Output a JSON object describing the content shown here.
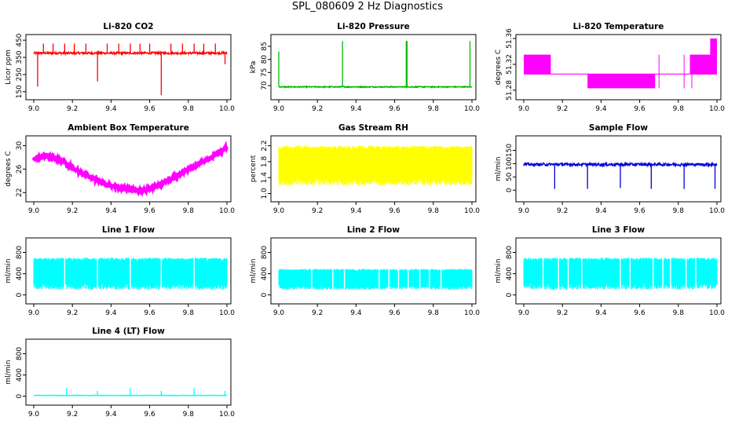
{
  "figure_title": "SPL_080609  2 Hz Diagnostics",
  "chart_data": [
    {
      "type": "line",
      "title": "Li-820 CO2",
      "ylabel": "Licor ppm",
      "color": "#ff0000",
      "xlim": [
        9.0,
        10.0
      ],
      "ylim": [
        140,
        460
      ],
      "yticks": [
        "150",
        "250",
        "350",
        "450"
      ],
      "ytick_values": [
        150,
        250,
        350,
        450
      ],
      "xticks": [
        "9.0",
        "9.2",
        "9.4",
        "9.6",
        "9.8",
        "10.0"
      ],
      "baseline": 375,
      "noise": 6,
      "spikes": [
        [
          9.02,
          180
        ],
        [
          9.05,
          430
        ],
        [
          9.1,
          430
        ],
        [
          9.16,
          430
        ],
        [
          9.21,
          430
        ],
        [
          9.27,
          430
        ],
        [
          9.33,
          210
        ],
        [
          9.38,
          430
        ],
        [
          9.44,
          430
        ],
        [
          9.5,
          430
        ],
        [
          9.55,
          430
        ],
        [
          9.6,
          430
        ],
        [
          9.66,
          130
        ],
        [
          9.71,
          430
        ],
        [
          9.77,
          430
        ],
        [
          9.83,
          430
        ],
        [
          9.88,
          430
        ],
        [
          9.94,
          430
        ],
        [
          9.99,
          310
        ]
      ]
    },
    {
      "type": "line",
      "title": "Li-820 Pressure",
      "ylabel": "kPa",
      "color": "#00bb00",
      "xlim": [
        9.0,
        10.0
      ],
      "ylim": [
        67,
        88
      ],
      "yticks": [
        "70",
        "75",
        "80",
        "85"
      ],
      "ytick_values": [
        70,
        75,
        80,
        85
      ],
      "xticks": [
        "9.0",
        "9.2",
        "9.4",
        "9.6",
        "9.8",
        "10.0"
      ],
      "baseline": 69.5,
      "noise": 0.2,
      "spikes": [
        [
          9.0,
          83
        ],
        [
          9.33,
          87
        ],
        [
          9.66,
          87
        ],
        [
          9.664,
          87
        ],
        [
          9.99,
          87
        ]
      ]
    },
    {
      "type": "step",
      "title": "Li-820 Temperature",
      "ylabel": "degrees C",
      "color": "#ff00ff",
      "xlim": [
        9.0,
        10.0
      ],
      "ylim": [
        51.275,
        51.36
      ],
      "yticks": [
        "51.28",
        "51.32",
        "51.36"
      ],
      "ytick_values": [
        51.28,
        51.32,
        51.36
      ],
      "xticks": [
        "9.0",
        "9.2",
        "9.4",
        "9.6",
        "9.8",
        "10.0"
      ],
      "bands": [
        [
          9.0,
          9.14,
          51.305,
          51.335
        ],
        [
          9.33,
          9.68,
          51.283,
          51.305
        ],
        [
          9.86,
          10.0,
          51.305,
          51.335
        ],
        [
          9.965,
          10.0,
          51.335,
          51.36
        ]
      ],
      "baseline": 51.305
    },
    {
      "type": "line",
      "title": "Ambient Box Temperature",
      "ylabel": "degrees C",
      "color": "#ff00ff",
      "xlim": [
        9.0,
        10.0
      ],
      "ylim": [
        21.5,
        31
      ],
      "yticks": [
        "22",
        "26",
        "30"
      ],
      "ytick_values": [
        22,
        26,
        30
      ],
      "xticks": [
        "9.0",
        "9.2",
        "9.4",
        "9.6",
        "9.8",
        "10.0"
      ],
      "curve": [
        [
          9.0,
          27.7
        ],
        [
          9.07,
          28.2
        ],
        [
          9.15,
          27.3
        ],
        [
          9.25,
          25.3
        ],
        [
          9.35,
          23.7
        ],
        [
          9.45,
          22.8
        ],
        [
          9.55,
          22.3
        ],
        [
          9.65,
          23.2
        ],
        [
          9.75,
          25.0
        ],
        [
          9.85,
          26.9
        ],
        [
          9.93,
          28.2
        ],
        [
          10.0,
          29.8
        ]
      ],
      "noise": 0.35
    },
    {
      "type": "noise",
      "title": "Gas Stream RH",
      "ylabel": "percent",
      "color": "#ffff00",
      "xlim": [
        9.0,
        10.0
      ],
      "ylim": [
        0.95,
        2.35
      ],
      "yticks": [
        "1.0",
        "1.4",
        "1.8",
        "2.2"
      ],
      "ytick_values": [
        1.0,
        1.4,
        1.8,
        2.2
      ],
      "xticks": [
        "9.0",
        "9.2",
        "9.4",
        "9.6",
        "9.8",
        "10.0"
      ],
      "band": [
        1.2,
        2.2
      ],
      "min": 1.0,
      "max": 2.3
    },
    {
      "type": "line",
      "title": "Sample Flow",
      "ylabel": "ml/min",
      "color": "#0000dd",
      "xlim": [
        9.0,
        10.0
      ],
      "ylim": [
        -20,
        190
      ],
      "yticks": [
        "0",
        "50",
        "100",
        "150"
      ],
      "ytick_values": [
        0,
        50,
        100,
        150
      ],
      "xticks": [
        "9.0",
        "9.2",
        "9.4",
        "9.6",
        "9.8",
        "10.0"
      ],
      "baseline": 97,
      "noise": 5,
      "spikes": [
        [
          9.16,
          5
        ],
        [
          9.33,
          5
        ],
        [
          9.5,
          8
        ],
        [
          9.66,
          5
        ],
        [
          9.83,
          5
        ],
        [
          9.99,
          5
        ]
      ]
    },
    {
      "type": "noise",
      "title": "Line 1 Flow",
      "ylabel": "ml/min",
      "color": "#00ffff",
      "xlim": [
        9.0,
        10.0
      ],
      "ylim": [
        -50,
        1000
      ],
      "yticks": [
        "0",
        "400",
        "800"
      ],
      "ytick_values": [
        0,
        400,
        800
      ],
      "xticks": [
        "9.0",
        "9.2",
        "9.4",
        "9.6",
        "9.8",
        "10.0"
      ],
      "band": [
        100,
        700
      ],
      "min": 100,
      "max": 710,
      "gaps": [
        9.16,
        9.33,
        9.5,
        9.66,
        9.83
      ]
    },
    {
      "type": "noise",
      "title": "Line 2 Flow",
      "ylabel": "ml/min",
      "color": "#00ffff",
      "xlim": [
        9.0,
        10.0
      ],
      "ylim": [
        -50,
        1000
      ],
      "yticks": [
        "0",
        "400",
        "800"
      ],
      "ytick_values": [
        0,
        400,
        800
      ],
      "xticks": [
        "9.0",
        "9.2",
        "9.4",
        "9.6",
        "9.8",
        "10.0"
      ],
      "band": [
        100,
        490
      ],
      "min": 90,
      "max": 500,
      "gaps": [
        9.17,
        9.28,
        9.34,
        9.52,
        9.57,
        9.62,
        9.67,
        9.73,
        9.78,
        9.84
      ]
    },
    {
      "type": "noise",
      "title": "Line 3 Flow",
      "ylabel": "ml/min",
      "color": "#00ffff",
      "xlim": [
        9.0,
        10.0
      ],
      "ylim": [
        -50,
        1000
      ],
      "yticks": [
        "0",
        "400",
        "800"
      ],
      "ytick_values": [
        0,
        400,
        800
      ],
      "xticks": [
        "9.0",
        "9.2",
        "9.4",
        "9.6",
        "9.8",
        "10.0"
      ],
      "band": [
        100,
        700
      ],
      "min": 90,
      "max": 720,
      "gaps": [
        9.1,
        9.18,
        9.23,
        9.3,
        9.5,
        9.55,
        9.67,
        9.72,
        9.76,
        9.84,
        9.89
      ]
    },
    {
      "type": "line",
      "title": "Line 4 (LT) Flow",
      "ylabel": "ml/min",
      "color": "#00ffff",
      "xlim": [
        9.0,
        10.0
      ],
      "ylim": [
        -50,
        1000
      ],
      "yticks": [
        "0",
        "400",
        "800"
      ],
      "ytick_values": [
        0,
        400,
        800
      ],
      "xticks": [
        "9.0",
        "9.2",
        "9.4",
        "9.6",
        "9.8",
        "10.0"
      ],
      "baseline": 15,
      "noise": 4,
      "spikes": [
        [
          9.17,
          150
        ],
        [
          9.33,
          100
        ],
        [
          9.5,
          150
        ],
        [
          9.66,
          100
        ],
        [
          9.83,
          150
        ],
        [
          9.99,
          100
        ]
      ]
    }
  ]
}
